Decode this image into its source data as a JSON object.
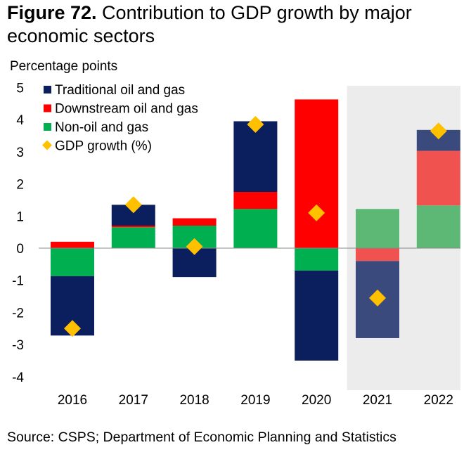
{
  "title_bold": "Figure 72.",
  "title_rest": " Contribution to GDP growth by major economic sectors",
  "source": "Source: CSPS; Department of Economic Planning and Statistics",
  "chart_data": {
    "type": "bar",
    "stacked": true,
    "ylabel": "Percentage points",
    "ylim": [
      -4,
      5
    ],
    "yticks": [
      5,
      4,
      3,
      2,
      1,
      0,
      -1,
      -2,
      -3,
      -4
    ],
    "categories": [
      "2016",
      "2017",
      "2018",
      "2019",
      "2020",
      "2021",
      "2022"
    ],
    "shaded_categories": [
      "2021",
      "2022"
    ],
    "legend_position": "top-left",
    "series": [
      {
        "name": "Traditional oil and gas",
        "color": "#0b1f5e",
        "shaded_color": "#3b4a7c",
        "values": [
          -1.85,
          0.65,
          -0.9,
          2.2,
          -2.8,
          -2.4,
          0.65
        ]
      },
      {
        "name": "Downstream oil and gas",
        "color": "#ff0000",
        "shaded_color": "#f0534f",
        "values": [
          0.2,
          0.05,
          0.23,
          0.53,
          4.63,
          -0.4,
          1.7
        ]
      },
      {
        "name": "Non-oil and gas",
        "color": "#00b050",
        "shaded_color": "#5cb874",
        "values": [
          -0.87,
          0.65,
          0.7,
          1.22,
          -0.7,
          1.22,
          1.33
        ]
      }
    ],
    "markers": {
      "name": "GDP growth (%)",
      "color": "#ffc000",
      "values": [
        -2.5,
        1.35,
        0.05,
        3.85,
        1.1,
        -1.55,
        3.65
      ]
    }
  }
}
